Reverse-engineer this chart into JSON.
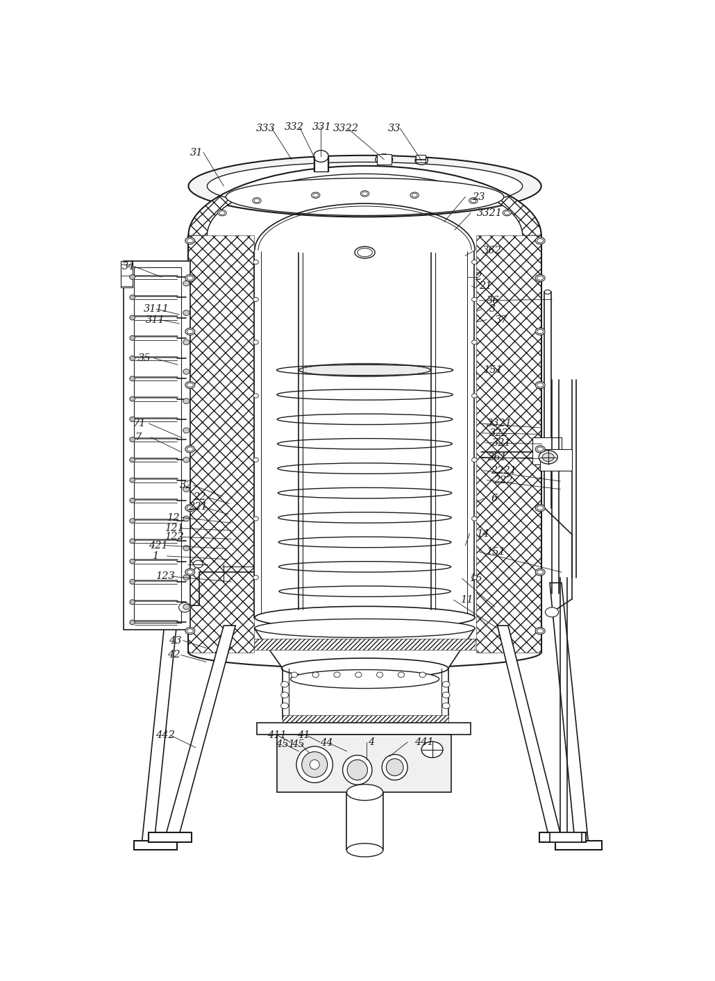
{
  "bg_color": "#ffffff",
  "line_color": "#1a1a1a",
  "lw": 1.2,
  "tlw": 0.7,
  "labels_top": [
    [
      "333",
      308,
      20
    ],
    [
      "332",
      363,
      18
    ],
    [
      "331",
      415,
      17
    ],
    [
      "3322",
      454,
      20
    ],
    [
      "33",
      558,
      20
    ],
    [
      "31",
      187,
      65
    ]
  ],
  "labels_right": [
    [
      "23",
      715,
      148
    ],
    [
      "3321",
      725,
      178
    ],
    [
      "362",
      735,
      248
    ],
    [
      "2",
      720,
      298
    ],
    [
      "21",
      728,
      315
    ],
    [
      "36",
      742,
      342
    ],
    [
      "3",
      748,
      358
    ],
    [
      "37",
      758,
      378
    ],
    [
      "151",
      738,
      472
    ],
    [
      "3321",
      742,
      572
    ],
    [
      "322",
      748,
      590
    ],
    [
      "321",
      754,
      608
    ],
    [
      "361",
      744,
      635
    ],
    [
      "2221",
      750,
      660
    ],
    [
      "222",
      756,
      678
    ],
    [
      "6",
      750,
      712
    ],
    [
      "14",
      726,
      778
    ],
    [
      "151",
      742,
      812
    ],
    [
      "15",
      710,
      862
    ],
    [
      "11",
      695,
      902
    ]
  ],
  "labels_left": [
    [
      "34",
      60,
      278
    ],
    [
      "3111",
      100,
      358
    ],
    [
      "311",
      104,
      378
    ],
    [
      "35",
      90,
      450
    ],
    [
      "71",
      80,
      572
    ],
    [
      "7",
      84,
      598
    ],
    [
      "32",
      168,
      688
    ],
    [
      "22",
      194,
      710
    ],
    [
      "221",
      184,
      728
    ],
    [
      "12",
      146,
      748
    ],
    [
      "121",
      142,
      766
    ],
    [
      "122",
      142,
      784
    ],
    [
      "421",
      110,
      800
    ],
    [
      "1",
      118,
      820
    ],
    [
      "123",
      124,
      858
    ],
    [
      "43",
      148,
      978
    ],
    [
      "42",
      144,
      1005
    ],
    [
      "442",
      124,
      1155
    ]
  ],
  "labels_bottom": [
    [
      "411",
      332,
      1155
    ],
    [
      "41",
      388,
      1155
    ],
    [
      "451",
      348,
      1172
    ],
    [
      "45",
      378,
      1172
    ],
    [
      "44",
      432,
      1170
    ],
    [
      "4",
      522,
      1168
    ],
    [
      "441",
      607,
      1168
    ]
  ]
}
